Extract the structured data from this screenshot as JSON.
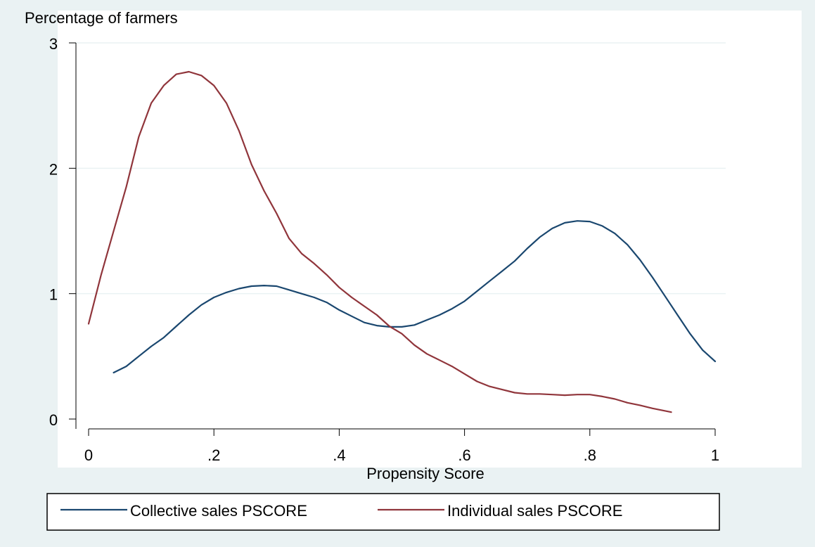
{
  "chart_data": {
    "type": "line",
    "title": "",
    "xlabel": "Propensity Score",
    "ylabel": "Percentage of farmers",
    "xlim": [
      0,
      1
    ],
    "ylim": [
      0,
      3
    ],
    "x_ticks": [
      0,
      0.2,
      0.4,
      0.6,
      0.8,
      1
    ],
    "x_tick_labels": [
      "0",
      ".2",
      ".4",
      ".6",
      ".8",
      "1"
    ],
    "y_ticks": [
      0,
      1,
      2,
      3
    ],
    "y_tick_labels": [
      "0",
      "1",
      "2",
      "3"
    ],
    "grid": true,
    "legend_position": "bottom",
    "series": [
      {
        "name": "Collective sales PSCORE",
        "color": "#1a476f",
        "points": [
          [
            0.04,
            0.37
          ],
          [
            0.06,
            0.42
          ],
          [
            0.08,
            0.5
          ],
          [
            0.1,
            0.58
          ],
          [
            0.12,
            0.65
          ],
          [
            0.14,
            0.74
          ],
          [
            0.16,
            0.83
          ],
          [
            0.18,
            0.91
          ],
          [
            0.2,
            0.97
          ],
          [
            0.22,
            1.01
          ],
          [
            0.24,
            1.04
          ],
          [
            0.26,
            1.06
          ],
          [
            0.28,
            1.065
          ],
          [
            0.3,
            1.06
          ],
          [
            0.32,
            1.03
          ],
          [
            0.34,
            1.0
          ],
          [
            0.36,
            0.97
          ],
          [
            0.38,
            0.93
          ],
          [
            0.4,
            0.87
          ],
          [
            0.42,
            0.82
          ],
          [
            0.44,
            0.77
          ],
          [
            0.46,
            0.745
          ],
          [
            0.48,
            0.735
          ],
          [
            0.5,
            0.735
          ],
          [
            0.52,
            0.75
          ],
          [
            0.54,
            0.79
          ],
          [
            0.56,
            0.83
          ],
          [
            0.58,
            0.88
          ],
          [
            0.6,
            0.94
          ],
          [
            0.62,
            1.02
          ],
          [
            0.64,
            1.1
          ],
          [
            0.66,
            1.18
          ],
          [
            0.68,
            1.26
          ],
          [
            0.7,
            1.36
          ],
          [
            0.72,
            1.45
          ],
          [
            0.74,
            1.52
          ],
          [
            0.76,
            1.565
          ],
          [
            0.78,
            1.58
          ],
          [
            0.8,
            1.575
          ],
          [
            0.82,
            1.54
          ],
          [
            0.84,
            1.48
          ],
          [
            0.86,
            1.39
          ],
          [
            0.88,
            1.27
          ],
          [
            0.9,
            1.13
          ],
          [
            0.92,
            0.98
          ],
          [
            0.94,
            0.83
          ],
          [
            0.96,
            0.68
          ],
          [
            0.98,
            0.55
          ],
          [
            1.0,
            0.46
          ]
        ]
      },
      {
        "name": "Individual sales PSCORE",
        "color": "#90353b",
        "points": [
          [
            0.0,
            0.76
          ],
          [
            0.02,
            1.15
          ],
          [
            0.04,
            1.5
          ],
          [
            0.06,
            1.85
          ],
          [
            0.08,
            2.25
          ],
          [
            0.1,
            2.52
          ],
          [
            0.12,
            2.66
          ],
          [
            0.14,
            2.75
          ],
          [
            0.16,
            2.77
          ],
          [
            0.18,
            2.74
          ],
          [
            0.2,
            2.66
          ],
          [
            0.22,
            2.52
          ],
          [
            0.24,
            2.3
          ],
          [
            0.26,
            2.03
          ],
          [
            0.28,
            1.82
          ],
          [
            0.3,
            1.64
          ],
          [
            0.32,
            1.44
          ],
          [
            0.34,
            1.32
          ],
          [
            0.36,
            1.24
          ],
          [
            0.38,
            1.15
          ],
          [
            0.4,
            1.05
          ],
          [
            0.42,
            0.97
          ],
          [
            0.44,
            0.9
          ],
          [
            0.46,
            0.83
          ],
          [
            0.48,
            0.74
          ],
          [
            0.5,
            0.68
          ],
          [
            0.52,
            0.59
          ],
          [
            0.54,
            0.52
          ],
          [
            0.56,
            0.47
          ],
          [
            0.58,
            0.42
          ],
          [
            0.6,
            0.36
          ],
          [
            0.62,
            0.3
          ],
          [
            0.64,
            0.26
          ],
          [
            0.66,
            0.235
          ],
          [
            0.68,
            0.21
          ],
          [
            0.7,
            0.2
          ],
          [
            0.72,
            0.2
          ],
          [
            0.74,
            0.195
          ],
          [
            0.76,
            0.19
          ],
          [
            0.78,
            0.195
          ],
          [
            0.8,
            0.195
          ],
          [
            0.82,
            0.18
          ],
          [
            0.84,
            0.16
          ],
          [
            0.86,
            0.13
          ],
          [
            0.88,
            0.11
          ],
          [
            0.9,
            0.085
          ],
          [
            0.93,
            0.055
          ]
        ]
      }
    ]
  },
  "colors": {
    "background": "#eaf2f3",
    "plot_region": "#ffffff",
    "grid": "#eaf2f3",
    "axis": "#000000"
  }
}
